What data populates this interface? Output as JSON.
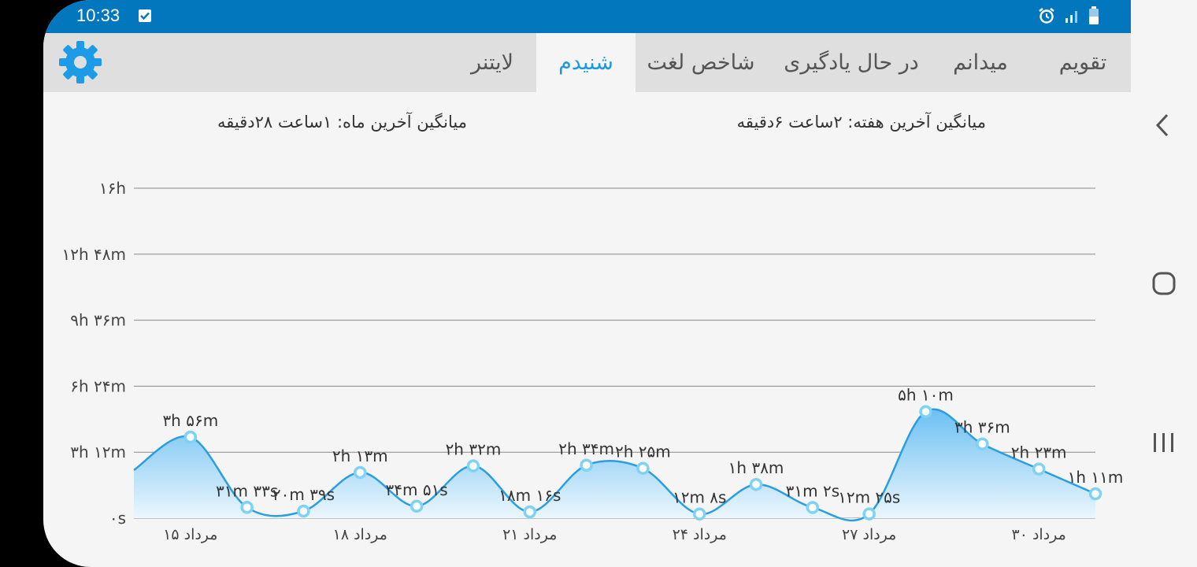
{
  "status_bar": {
    "time": "10:33"
  },
  "tabs": [
    {
      "label": "تقویم",
      "active": false
    },
    {
      "label": "میدانم",
      "active": false
    },
    {
      "label": "در حال یادگیری",
      "active": false
    },
    {
      "label": "شاخص لغت",
      "active": false
    },
    {
      "label": "شنیدم",
      "active": true
    },
    {
      "label": "لایتنر",
      "active": false
    }
  ],
  "averages": {
    "week": "میانگین آخرین هفته: ۲ساعت  ۶دقیقه",
    "month": "میانگین آخرین ماه: ۱ساعت  ۲۸دقیقه"
  },
  "colors": {
    "accent": "#1a9be0",
    "status_bar": "#0277bd",
    "line": "#2a9ee0",
    "gear": "#1e9be6"
  },
  "icons": {
    "settings": "gear-icon",
    "alarm": "alarm-icon",
    "signal": "signal-icon",
    "battery": "battery-icon",
    "back": "chevron-left-icon",
    "home": "home-icon",
    "recents": "recents-icon"
  },
  "chart_data": {
    "type": "area",
    "y_ticks": [
      "۰s",
      "۳h ۱۲m",
      "۶h ۲۴m",
      "۹h ۳۶m",
      "۱۲h ۴۸m",
      "۱۶h"
    ],
    "ylim": [
      0,
      960
    ],
    "y_unit": "minutes",
    "x_tick_labels": [
      {
        "index": 1,
        "label": "۱۵ مرداد"
      },
      {
        "index": 4,
        "label": "۱۸ مرداد"
      },
      {
        "index": 7,
        "label": "۲۱ مرداد"
      },
      {
        "index": 10,
        "label": "۲۴ مرداد"
      },
      {
        "index": 13,
        "label": "۲۷ مرداد"
      },
      {
        "index": 16,
        "label": "۳۰ مرداد"
      }
    ],
    "points": [
      {
        "index": 0,
        "value": 140,
        "label": ""
      },
      {
        "index": 1,
        "value": 236,
        "label": "۳h ۵۶m"
      },
      {
        "index": 2,
        "value": 31.5,
        "label": "۳۱m ۳۳s"
      },
      {
        "index": 3,
        "value": 20.6,
        "label": "۲۰m ۳۹s"
      },
      {
        "index": 4,
        "value": 133,
        "label": "۲h ۱۳m"
      },
      {
        "index": 5,
        "value": 34.8,
        "label": "۳۴m ۵۱s"
      },
      {
        "index": 6,
        "value": 152,
        "label": "۲h ۳۲m"
      },
      {
        "index": 7,
        "value": 18.3,
        "label": "۱۸m ۱۶s"
      },
      {
        "index": 8,
        "value": 154,
        "label": "۲h ۳۴m"
      },
      {
        "index": 9,
        "value": 145,
        "label": "۲h ۲۵m"
      },
      {
        "index": 10,
        "value": 12.1,
        "label": "۱۲m ۸s"
      },
      {
        "index": 11,
        "value": 98,
        "label": "۱h ۳۸m"
      },
      {
        "index": 12,
        "value": 31,
        "label": "۳۱m ۲s"
      },
      {
        "index": 13,
        "value": 12.4,
        "label": "۱۲m ۲۵s"
      },
      {
        "index": 14,
        "value": 310,
        "label": "۵h ۱۰m"
      },
      {
        "index": 15,
        "value": 216,
        "label": "۳h ۳۶m"
      },
      {
        "index": 16,
        "value": 143,
        "label": "۲h ۲۳m"
      },
      {
        "index": 17,
        "value": 71,
        "label": "۱h ۱۱m"
      }
    ]
  }
}
